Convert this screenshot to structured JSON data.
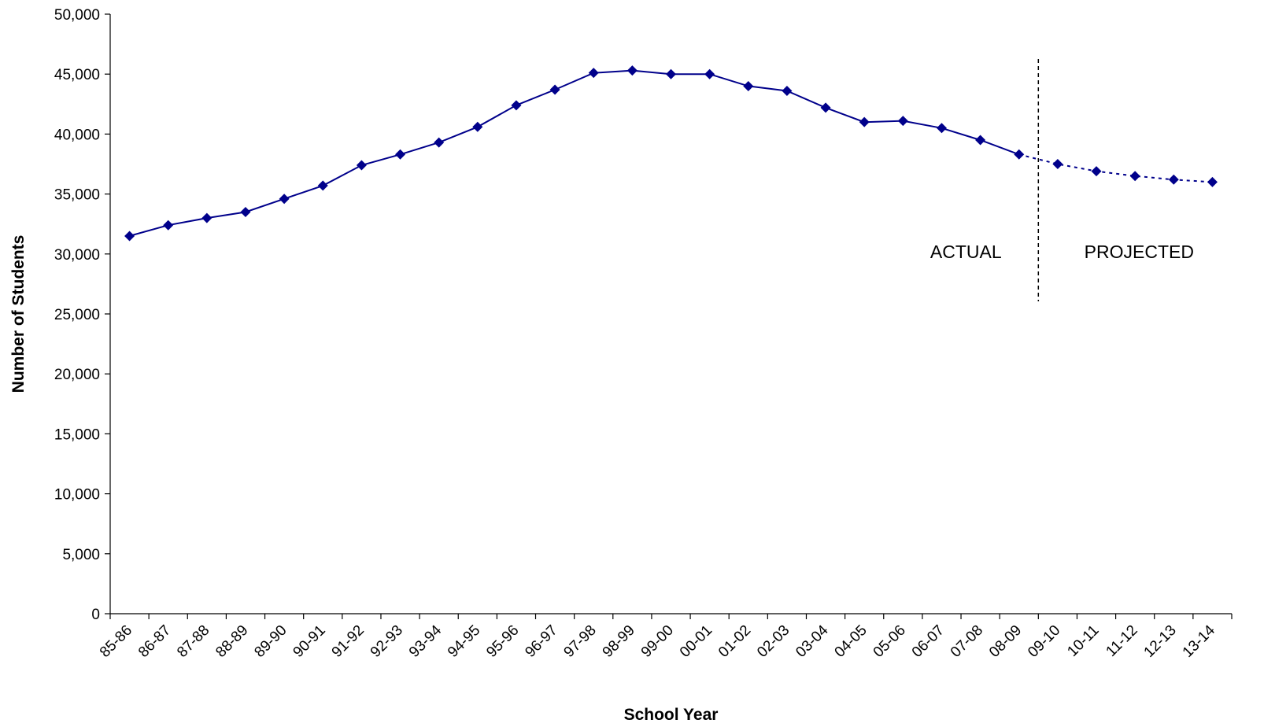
{
  "chart_data": {
    "type": "line",
    "title": "",
    "xlabel": "School Year",
    "ylabel": "Number of Students",
    "ylim": [
      0,
      50000
    ],
    "ytick_step": 5000,
    "ytick_labels": [
      "0",
      "5,000",
      "10,000",
      "15,000",
      "20,000",
      "25,000",
      "30,000",
      "35,000",
      "40,000",
      "45,000",
      "50,000"
    ],
    "categories": [
      "85-86",
      "86-87",
      "87-88",
      "88-89",
      "89-90",
      "90-91",
      "91-92",
      "92-93",
      "93-94",
      "94-95",
      "95-96",
      "96-97",
      "97-98",
      "98-99",
      "99-00",
      "00-01",
      "01-02",
      "02-03",
      "03-04",
      "04-05",
      "05-06",
      "06-07",
      "07-08",
      "08-09",
      "09-10",
      "10-11",
      "11-12",
      "12-13",
      "13-14"
    ],
    "grid": false,
    "series": [
      {
        "values": [
          31500,
          32400,
          33000,
          33500,
          34600,
          35700,
          37400,
          38300,
          39300,
          40600,
          42400,
          43700,
          45100,
          45300,
          45000,
          45000,
          44000,
          43600,
          42200,
          41000,
          41100,
          40500,
          39500,
          38300,
          37500,
          36900,
          36500,
          36200,
          36000
        ],
        "actual_through": "08-09",
        "color": "#00008B"
      }
    ],
    "divider_after": "08-09",
    "annotations": {
      "actual": "ACTUAL",
      "projected": "PROJECTED"
    }
  }
}
